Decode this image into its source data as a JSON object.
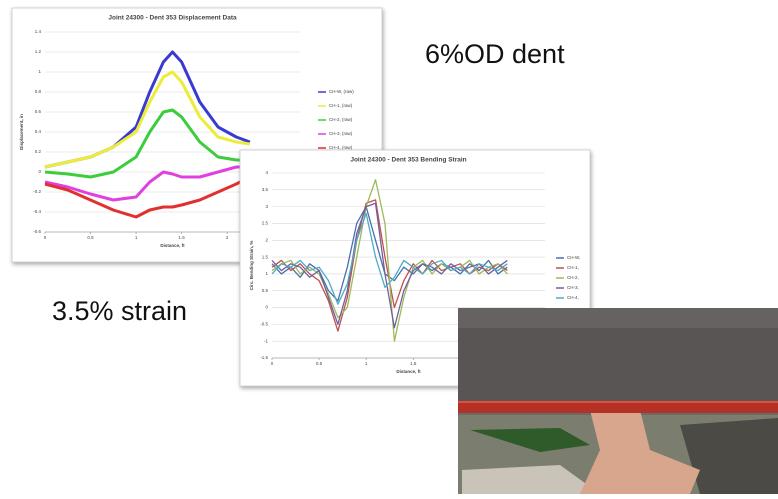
{
  "annotations": {
    "dent": "6%OD dent",
    "strain": "3.5% strain"
  },
  "chart_data": [
    {
      "type": "line",
      "title": "Joint 24300 - Dent 353  Displacement Data",
      "x_label": "Distance, ft",
      "y_label": "Displacement, in",
      "x": [
        0,
        0.25,
        0.5,
        0.75,
        1,
        1.15,
        1.3,
        1.4,
        1.5,
        1.7,
        1.9,
        2.1,
        2.25
      ],
      "xlim": [
        0,
        2.8
      ],
      "xticks": [
        0,
        0.5,
        1,
        1.5,
        2,
        2.5
      ],
      "ylim": [
        -0.6,
        1.4
      ],
      "yticks": [
        -0.6,
        -0.4,
        -0.2,
        0,
        0.2,
        0.4,
        0.6,
        0.8,
        1,
        1.2,
        1.4
      ],
      "grid": true,
      "series": [
        {
          "name": "CH-W, (raw)",
          "color": "#3a3ad0",
          "values": [
            0.05,
            0.1,
            0.15,
            0.25,
            0.45,
            0.8,
            1.1,
            1.2,
            1.1,
            0.7,
            0.45,
            0.35,
            0.3
          ]
        },
        {
          "name": "CH-1, (raw)",
          "color": "#ecec3a",
          "values": [
            0.05,
            0.1,
            0.15,
            0.25,
            0.4,
            0.7,
            0.95,
            1.0,
            0.9,
            0.55,
            0.35,
            0.3,
            0.28
          ]
        },
        {
          "name": "CH-2, (raw)",
          "color": "#3ccc3c",
          "values": [
            0,
            -0.02,
            -0.05,
            0,
            0.15,
            0.4,
            0.6,
            0.62,
            0.55,
            0.3,
            0.15,
            0.12,
            0.12
          ]
        },
        {
          "name": "CH-3, (raw)",
          "color": "#e040e0",
          "values": [
            -0.1,
            -0.15,
            -0.22,
            -0.28,
            -0.25,
            -0.1,
            0,
            -0.02,
            -0.05,
            -0.05,
            0,
            0.05,
            0.05
          ]
        },
        {
          "name": "CH-4, (raw)",
          "color": "#e03030",
          "values": [
            -0.12,
            -0.18,
            -0.28,
            -0.38,
            -0.45,
            -0.38,
            -0.35,
            -0.35,
            -0.33,
            -0.28,
            -0.2,
            -0.12,
            -0.05
          ]
        }
      ]
    },
    {
      "type": "line",
      "title": "Joint 24300 - Dent 353  Bending Strain",
      "x_label": "Distance, ft",
      "y_label": "Circ. Bending Strain, %",
      "x": [
        0,
        0.1,
        0.2,
        0.3,
        0.4,
        0.5,
        0.6,
        0.7,
        0.8,
        0.9,
        1,
        1.1,
        1.2,
        1.3,
        1.4,
        1.5,
        1.6,
        1.7,
        1.8,
        1.9,
        2,
        2.1,
        2.2,
        2.3,
        2.4,
        2.5
      ],
      "xlim": [
        0,
        2.9
      ],
      "xticks": [
        0,
        0.5,
        1,
        1.5,
        2,
        2.5
      ],
      "ylim": [
        -1.5,
        4
      ],
      "yticks": [
        -1.5,
        -1,
        -0.5,
        0,
        0.5,
        1,
        1.5,
        2,
        2.5,
        3,
        3.5,
        4
      ],
      "grid": true,
      "series": [
        {
          "name": "CH-W,",
          "color": "#4a6fb0",
          "values": [
            1.3,
            1.0,
            1.2,
            0.9,
            1.3,
            1.1,
            0.5,
            0.2,
            1.2,
            2.5,
            3.0,
            2.0,
            1.0,
            0.8,
            1.2,
            1.0,
            1.3,
            1.1,
            1.3,
            1.2,
            1.0,
            1.3,
            1.1,
            1.4,
            1.0,
            1.2
          ]
        },
        {
          "name": "CH-1,",
          "color": "#c0504d",
          "values": [
            1.2,
            1.4,
            1.1,
            1.3,
            1.0,
            0.8,
            0.2,
            -0.7,
            0.3,
            2.0,
            3.1,
            3.2,
            1.5,
            0.0,
            0.8,
            1.3,
            1.0,
            1.4,
            1.1,
            1.2,
            1.3,
            1.0,
            1.2,
            1.1,
            1.3,
            1.1
          ]
        },
        {
          "name": "CH-2,",
          "color": "#9bbb59",
          "values": [
            1.1,
            1.3,
            1.4,
            1.0,
            1.2,
            1.0,
            0.4,
            -0.3,
            0.0,
            1.5,
            3.0,
            3.8,
            2.5,
            -1.0,
            0.3,
            1.2,
            1.4,
            1.0,
            1.3,
            1.1,
            1.2,
            1.4,
            1.0,
            1.2,
            1.3,
            1.0
          ]
        },
        {
          "name": "CH-3,",
          "color": "#7060a0",
          "values": [
            1.4,
            1.1,
            1.3,
            1.2,
            0.9,
            1.1,
            0.3,
            -0.5,
            0.5,
            2.2,
            3.0,
            3.1,
            1.0,
            -0.6,
            0.5,
            1.1,
            1.3,
            1.2,
            1.0,
            1.3,
            1.1,
            1.2,
            1.3,
            1.0,
            1.2,
            1.4
          ]
        },
        {
          "name": "CH-4,",
          "color": "#4bacc6",
          "values": [
            1.0,
            1.3,
            1.2,
            1.4,
            1.1,
            1.2,
            0.8,
            0.1,
            0.7,
            2.0,
            2.8,
            1.5,
            0.6,
            0.9,
            1.4,
            1.2,
            1.0,
            1.3,
            1.4,
            1.1,
            1.2,
            1.0,
            1.3,
            1.2,
            1.1,
            1.3
          ]
        }
      ]
    }
  ]
}
